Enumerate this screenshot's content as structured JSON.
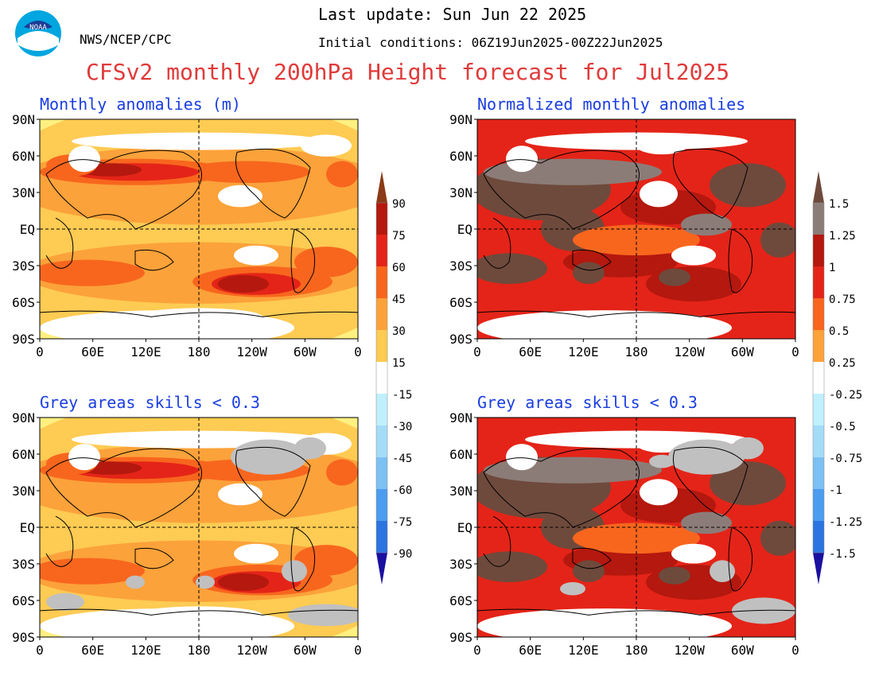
{
  "header": {
    "last_update": "Last update: Sun Jun 22 2025",
    "initial_conditions": "Initial conditions: 06Z19Jun2025-00Z22Jun2025",
    "org": "NWS/NCEP/CPC",
    "main_title": "CFSv2 monthly 200hPa Height forecast for Jul2025",
    "logo_text": "NOAA"
  },
  "panels": [
    {
      "title": "Monthly anomalies (m)",
      "mode": "anom",
      "grey": false
    },
    {
      "title": "Normalized monthly anomalies",
      "mode": "norm",
      "grey": false
    },
    {
      "title": "Grey areas skills < 0.3",
      "mode": "anom",
      "grey": true
    },
    {
      "title": "Grey areas skills < 0.3",
      "mode": "norm",
      "grey": true
    }
  ],
  "lat_labels": [
    "90N",
    "60N",
    "30N",
    "EQ",
    "30S",
    "60S",
    "90S"
  ],
  "lon_labels": [
    "0",
    "60E",
    "120E",
    "180",
    "120W",
    "60W",
    "0"
  ],
  "colorbar_left": {
    "pos_labels": [
      "90",
      "75",
      "60",
      "45",
      "30",
      "15"
    ],
    "neg_labels": [
      "-15",
      "-30",
      "-45",
      "-60",
      "-75",
      "-90"
    ]
  },
  "colorbar_right": {
    "pos_labels": [
      "1.5",
      "1.25",
      "1",
      "0.75",
      "0.5",
      "0.25"
    ],
    "neg_labels": [
      "-0.25",
      "-0.5",
      "-0.75",
      "-1",
      "-1.25",
      "-1.5"
    ]
  },
  "colors": {
    "pos": [
      "#fff080",
      "#fecb53",
      "#fca23a",
      "#f8661e",
      "#e42418",
      "#b4180e",
      "#8a3a16"
    ],
    "neg": [
      "#c0f0fc",
      "#a4dcf8",
      "#7cc0f4",
      "#4c9cf0",
      "#2c74e0",
      "#4030c0",
      "#1a10a0"
    ],
    "norm_pos": [
      "#fecb53",
      "#fca23a",
      "#f8661e",
      "#e42418",
      "#b4180e",
      "#8c7c78",
      "#6e4a3c"
    ],
    "grey": "#c0c0c0",
    "title_red": "#e03a3a",
    "title_blue": "#1a3de0"
  }
}
